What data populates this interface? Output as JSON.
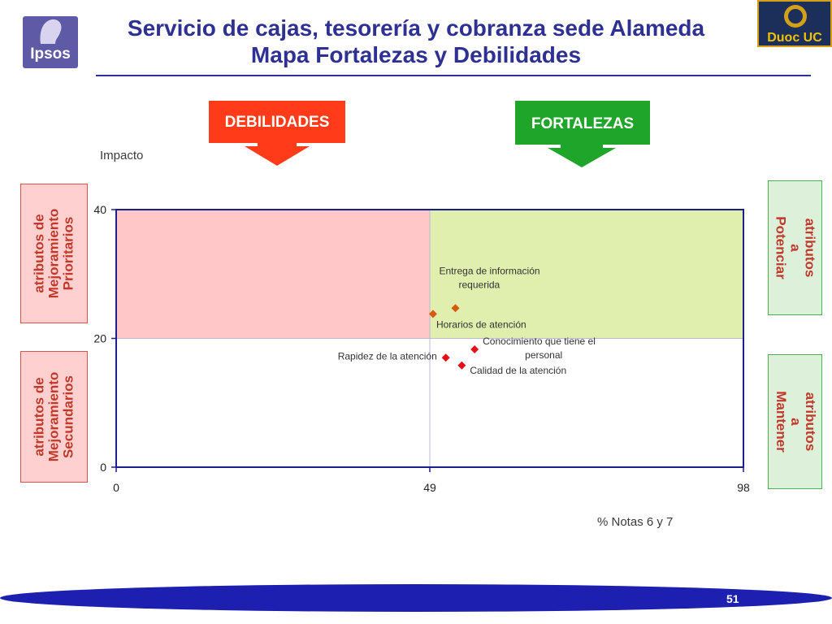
{
  "title": {
    "line1": "Servicio de cajas, tesorería y cobranza sede Alameda",
    "line2": "Mapa Fortalezas y Debilidades"
  },
  "logos": {
    "left_text": "Ipsos",
    "right_text": "Duoc UC"
  },
  "arrows": {
    "weak": "DEBILIDADES",
    "strong": "FORTALEZAS"
  },
  "side_labels": {
    "top_left": "atributos de\nMejoramiento\nPrioritarios",
    "bottom_left": "atributos de\nMejoramiento\nSecundarios",
    "top_right": "atributos a\nPotenciar",
    "bottom_right": "atributos a\nMantener"
  },
  "axis": {
    "ylabel": "Impacto",
    "xlabel": "% Notas 6 y 7"
  },
  "page_number": "51",
  "colors": {
    "title": "#2e3192",
    "weak_quadrant": "#ffc7c7",
    "strong_quadrant": "#e0eeae",
    "weak_arrow": "#ff3b1a",
    "strong_arrow": "#1ea52a",
    "point_orange": "#d75a0d",
    "point_red": "#e3101a",
    "footer_band": "#1c1fb0"
  },
  "chart_data": {
    "type": "scatter",
    "xlim": [
      0,
      98
    ],
    "ylim": [
      0,
      40
    ],
    "xticks": [
      "0",
      "49",
      "98"
    ],
    "yticks": [
      "0",
      "20",
      "40"
    ],
    "divider_x": 49,
    "divider_y": 20,
    "points": [
      {
        "label": "Entrega de información requerida",
        "x": 53,
        "y": 24.7,
        "color": "#d75a0d"
      },
      {
        "label": "Horarios de atención",
        "x": 49.5,
        "y": 23.8,
        "color": "#d75a0d"
      },
      {
        "label": "Conocimiento que tiene el personal",
        "x": 56,
        "y": 18.3,
        "color": "#e3101a"
      },
      {
        "label": "Rapidez de la atención",
        "x": 51.5,
        "y": 17,
        "color": "#e3101a"
      },
      {
        "label": "Calidad de la atención",
        "x": 54,
        "y": 15.8,
        "color": "#e3101a"
      }
    ]
  }
}
